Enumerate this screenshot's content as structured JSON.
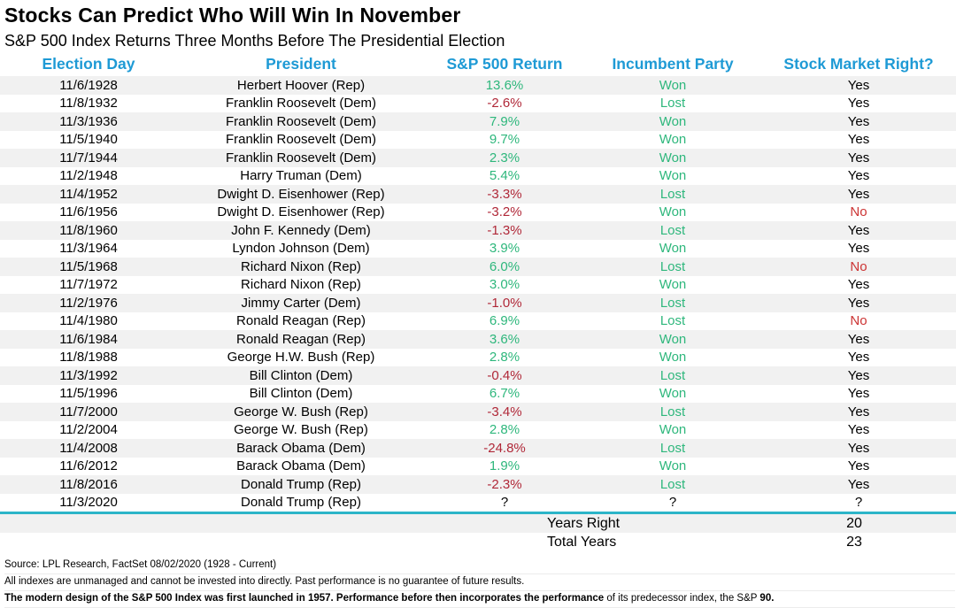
{
  "page": {
    "title": "Stocks Can Predict Who Will Win In November",
    "subtitle": "S&P 500 Index Returns Three Months Before The Presidential Election"
  },
  "colors": {
    "header_blue": "#1e9ad5",
    "positive_green": "#2eb77c",
    "negative_red": "#b02838",
    "no_red": "#cc3333",
    "stripe_gray": "#f1f1f1",
    "divider_teal": "#2cb5c8"
  },
  "chart_data": {
    "type": "table",
    "title": "Stocks Can Predict Who Will Win In November",
    "subtitle": "S&P 500 Index Returns Three Months Before The Presidential Election",
    "columns": [
      "Election Day",
      "President",
      "S&P 500 Return",
      "Incumbent Party",
      "Stock Market Right?"
    ],
    "rows": [
      {
        "election_day": "11/6/1928",
        "president": "Herbert Hoover (Rep)",
        "sp500_return": "13.6%",
        "incumbent_party": "Won",
        "stock_market_right": "Yes"
      },
      {
        "election_day": "11/8/1932",
        "president": "Franklin Roosevelt (Dem)",
        "sp500_return": "-2.6%",
        "incumbent_party": "Lost",
        "stock_market_right": "Yes"
      },
      {
        "election_day": "11/3/1936",
        "president": "Franklin Roosevelt (Dem)",
        "sp500_return": "7.9%",
        "incumbent_party": "Won",
        "stock_market_right": "Yes"
      },
      {
        "election_day": "11/5/1940",
        "president": "Franklin Roosevelt (Dem)",
        "sp500_return": "9.7%",
        "incumbent_party": "Won",
        "stock_market_right": "Yes"
      },
      {
        "election_day": "11/7/1944",
        "president": "Franklin Roosevelt (Dem)",
        "sp500_return": "2.3%",
        "incumbent_party": "Won",
        "stock_market_right": "Yes"
      },
      {
        "election_day": "11/2/1948",
        "president": "Harry Truman (Dem)",
        "sp500_return": "5.4%",
        "incumbent_party": "Won",
        "stock_market_right": "Yes"
      },
      {
        "election_day": "11/4/1952",
        "president": "Dwight D. Eisenhower (Rep)",
        "sp500_return": "-3.3%",
        "incumbent_party": "Lost",
        "stock_market_right": "Yes"
      },
      {
        "election_day": "11/6/1956",
        "president": "Dwight D. Eisenhower (Rep)",
        "sp500_return": "-3.2%",
        "incumbent_party": "Won",
        "stock_market_right": "No"
      },
      {
        "election_day": "11/8/1960",
        "president": "John F. Kennedy (Dem)",
        "sp500_return": "-1.3%",
        "incumbent_party": "Lost",
        "stock_market_right": "Yes"
      },
      {
        "election_day": "11/3/1964",
        "president": "Lyndon Johnson (Dem)",
        "sp500_return": "3.9%",
        "incumbent_party": "Won",
        "stock_market_right": "Yes"
      },
      {
        "election_day": "11/5/1968",
        "president": "Richard Nixon (Rep)",
        "sp500_return": "6.0%",
        "incumbent_party": "Lost",
        "stock_market_right": "No"
      },
      {
        "election_day": "11/7/1972",
        "president": "Richard Nixon (Rep)",
        "sp500_return": "3.0%",
        "incumbent_party": "Won",
        "stock_market_right": "Yes"
      },
      {
        "election_day": "11/2/1976",
        "president": "Jimmy Carter (Dem)",
        "sp500_return": "-1.0%",
        "incumbent_party": "Lost",
        "stock_market_right": "Yes"
      },
      {
        "election_day": "11/4/1980",
        "president": "Ronald Reagan (Rep)",
        "sp500_return": "6.9%",
        "incumbent_party": "Lost",
        "stock_market_right": "No"
      },
      {
        "election_day": "11/6/1984",
        "president": "Ronald Reagan (Rep)",
        "sp500_return": "3.6%",
        "incumbent_party": "Won",
        "stock_market_right": "Yes"
      },
      {
        "election_day": "11/8/1988",
        "president": "George H.W. Bush (Rep)",
        "sp500_return": "2.8%",
        "incumbent_party": "Won",
        "stock_market_right": "Yes"
      },
      {
        "election_day": "11/3/1992",
        "president": "Bill Clinton (Dem)",
        "sp500_return": "-0.4%",
        "incumbent_party": "Lost",
        "stock_market_right": "Yes"
      },
      {
        "election_day": "11/5/1996",
        "president": "Bill Clinton (Dem)",
        "sp500_return": "6.7%",
        "incumbent_party": "Won",
        "stock_market_right": "Yes"
      },
      {
        "election_day": "11/7/2000",
        "president": "George W. Bush (Rep)",
        "sp500_return": "-3.4%",
        "incumbent_party": "Lost",
        "stock_market_right": "Yes"
      },
      {
        "election_day": "11/2/2004",
        "president": "George W. Bush (Rep)",
        "sp500_return": "2.8%",
        "incumbent_party": "Won",
        "stock_market_right": "Yes"
      },
      {
        "election_day": "11/4/2008",
        "president": "Barack Obama (Dem)",
        "sp500_return": "-24.8%",
        "incumbent_party": "Lost",
        "stock_market_right": "Yes"
      },
      {
        "election_day": "11/6/2012",
        "president": "Barack Obama (Dem)",
        "sp500_return": "1.9%",
        "incumbent_party": "Won",
        "stock_market_right": "Yes"
      },
      {
        "election_day": "11/8/2016",
        "president": "Donald Trump (Rep)",
        "sp500_return": "-2.3%",
        "incumbent_party": "Lost",
        "stock_market_right": "Yes"
      },
      {
        "election_day": "11/3/2020",
        "president": "Donald Trump (Rep)",
        "sp500_return": "?",
        "incumbent_party": "?",
        "stock_market_right": "?"
      }
    ],
    "summary_rows": [
      {
        "label": "Years Right",
        "value": "20"
      },
      {
        "label": "Total Years",
        "value": "23"
      }
    ]
  },
  "footer": {
    "source": "Source: LPL Research, FactSet 08/02/2020 (1928 - Current)",
    "disclaimer": "All indexes are unmanaged and cannot be invested into directly. Past performance is no guarantee of future results.",
    "note_bold_start": "The modern design of the S&P 500 Index was first launched in 1957. Performance before then incorporates the performance",
    "note_regular": " of its  predecessor index, the S&P ",
    "note_bold_end": "90."
  }
}
